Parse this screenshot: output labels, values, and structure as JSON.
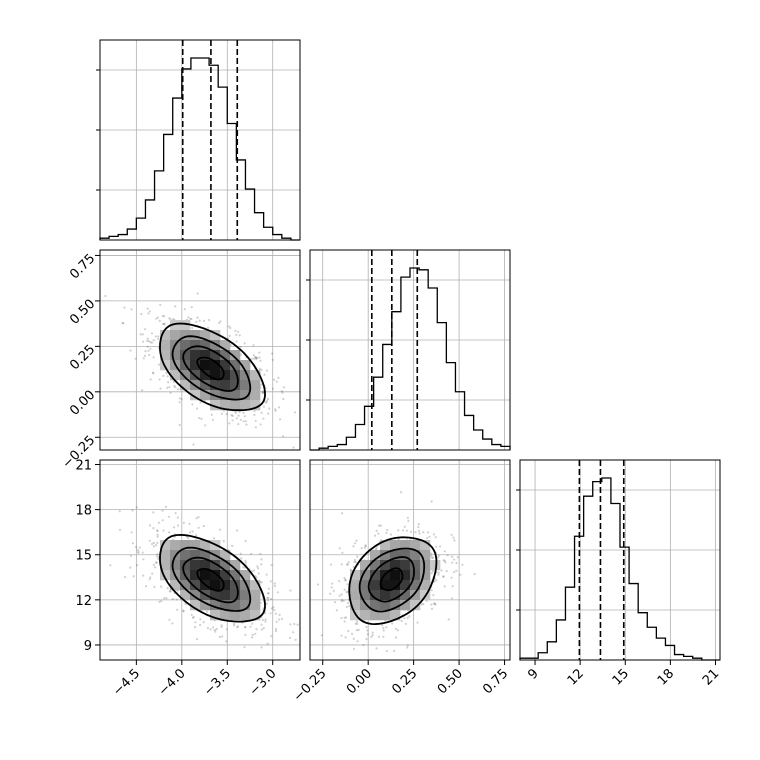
{
  "chart_data": {
    "type": "corner",
    "params": [
      {
        "range": [
          -4.9,
          -2.7
        ],
        "ticks": [
          -4.5,
          -4.0,
          -3.5,
          -3.0
        ],
        "tick_labels": [
          "−4.5",
          "−4.0",
          "−3.5",
          "−3.0"
        ],
        "median": -3.68,
        "q_low": -3.99,
        "q_high": -3.39,
        "sd": 0.29
      },
      {
        "range": [
          -0.32,
          0.78
        ],
        "ticks": [
          -0.25,
          0.0,
          0.25,
          0.5,
          0.75
        ],
        "tick_labels": [
          "−0.25",
          "0.00",
          "0.25",
          "0.50",
          "0.75"
        ],
        "median": 0.13,
        "q_low": 0.02,
        "q_high": 0.27,
        "sd": 0.12
      },
      {
        "range": [
          8.0,
          21.3
        ],
        "ticks": [
          9,
          12,
          15,
          18,
          21
        ],
        "tick_labels": [
          "9",
          "12",
          "15",
          "18",
          "21"
        ],
        "median": 13.35,
        "q_low": 11.95,
        "q_high": 14.9,
        "sd": 1.45
      }
    ],
    "histograms": [
      {
        "bins": [
          -4.9,
          -2.7
        ],
        "heights": [
          1,
          2,
          3,
          6,
          12,
          22,
          38,
          58,
          78,
          94,
          100,
          100,
          96,
          84,
          64,
          44,
          28,
          15,
          7,
          3,
          1,
          0
        ]
      },
      {
        "bins": [
          -0.32,
          0.78
        ],
        "heights": [
          0,
          1,
          2,
          3,
          7,
          14,
          24,
          40,
          58,
          76,
          95,
          100,
          99,
          89,
          70,
          48,
          32,
          19,
          11,
          6,
          3,
          2
        ]
      },
      {
        "bins": [
          8.0,
          21.3
        ],
        "heights": [
          1,
          1,
          4,
          10,
          22,
          40,
          68,
          90,
          98,
          100,
          86,
          62,
          42,
          26,
          18,
          12,
          8,
          3,
          2,
          1,
          0,
          0
        ]
      }
    ],
    "correlations": {
      "0-1": -0.55,
      "0-2": -0.55,
      "1-2": 0.35
    },
    "contour_levels_sigma": [
      0.5,
      1.0,
      1.5,
      2.0
    ],
    "grid": true
  }
}
